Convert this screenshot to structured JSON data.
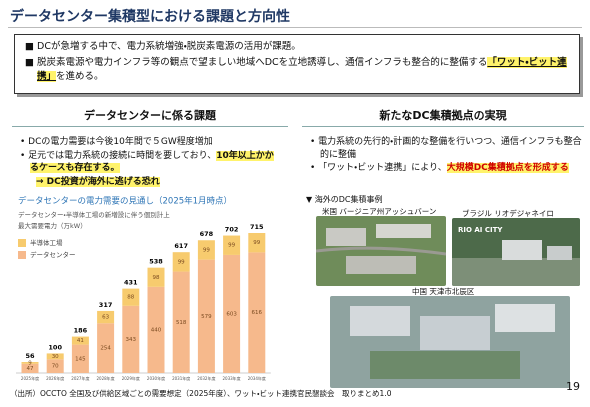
{
  "header": {
    "title": "データセンター集積型における課題と方向性"
  },
  "summary": {
    "bullets": [
      [
        "DCが急増する中で、電力系統増強・脱炭素電源の活用が課題。"
      ],
      [
        "脱炭素電源や電力インフラ等の観点で望ましい地域へDCを立地誘導し、通信インフラも整合的に整備する",
        "「ワット・ビット連携」",
        "を進める。"
      ]
    ]
  },
  "left": {
    "heading": "データセンターに係る課題",
    "bullets": [
      [
        "DCの電力需要は今後10年間で５GW程度増加"
      ],
      [
        "足元では電力系統の接続に時間を要しており、",
        "10年以上かかるケースも存在する。"
      ]
    ],
    "arrow_note": "→ DC投資が海外に逃げる恐れ"
  },
  "chart_data": {
    "type": "bar",
    "stacked": true,
    "title": "データセンターの電力需要の見通し（2025年1月時点）",
    "subtitle": "データセンター・半導体工場の新増設に伴う個別計上",
    "y_label": "最大需要電力（万kW）",
    "categories": [
      "2025年度",
      "2026年度",
      "2027年度",
      "2028年度",
      "2029年度",
      "2030年度",
      "2031年度",
      "2032年度",
      "2033年度",
      "2034年度"
    ],
    "series": [
      {
        "name": "データセンター",
        "color": "#f6b98c",
        "values": [
          47,
          70,
          145,
          254,
          343,
          440,
          518,
          579,
          603,
          616
        ]
      },
      {
        "name": "半導体工場",
        "color": "#f7cb6e",
        "values": [
          9,
          30,
          41,
          63,
          88,
          98,
          99,
          99,
          99,
          99
        ]
      }
    ],
    "totals": [
      56,
      100,
      186,
      317,
      431,
      538,
      617,
      678,
      702,
      715
    ]
  },
  "right": {
    "heading": "新たなDC集積拠点の実現",
    "bullets": [
      [
        "電力系統の先行的・計画的な整備を行いつつ、通信インフラも整合的に整備"
      ],
      [
        "「ワット・ビット連携」により、",
        "大規模DC集積拠点を形成する"
      ]
    ],
    "examples_title": "▼ 海外のDC集積事例",
    "examples": [
      {
        "label": "米国 バージニア州アッシュバーン"
      },
      {
        "label": "ブラジル リオデジャネイロ",
        "sign": "RIO AI CITY"
      },
      {
        "label": "中国 天津市北辰区"
      }
    ]
  },
  "footer": {
    "source": "（出所）OCCTO 全国及び供給区域ごとの需要想定（2025年度）、ワット・ビット連携官民懇談会　取りまとめ1.0",
    "page": 19
  }
}
